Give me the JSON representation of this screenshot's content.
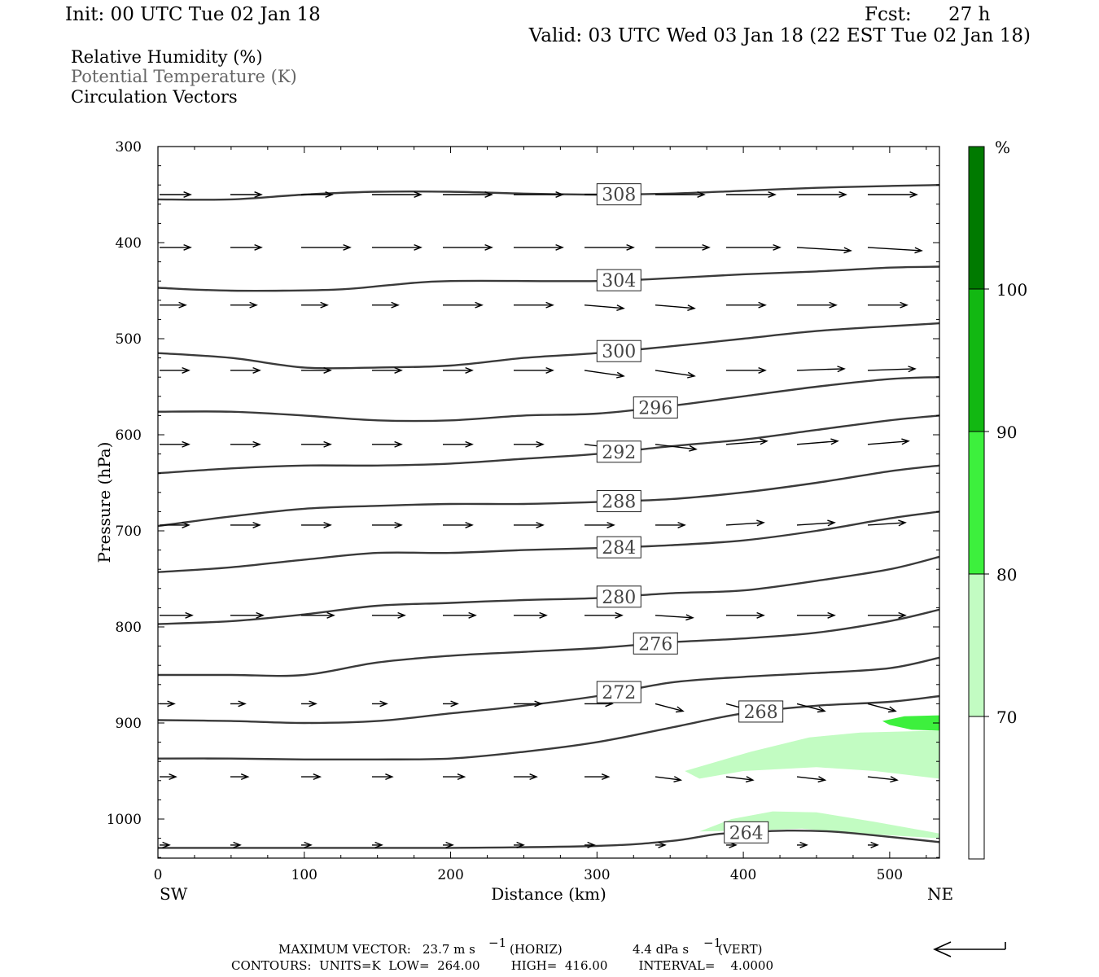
{
  "header": {
    "init": "Init: 00 UTC Tue 02 Jan 18",
    "fcst_label": "Fcst:",
    "fcst_value": "27 h",
    "valid": "Valid: 03 UTC Wed 03 Jan 18 (22 EST Tue 02 Jan 18)"
  },
  "legend": {
    "rh": "Relative Humidity (%)",
    "theta": "Potential Temperature (K)",
    "vectors": "Circulation Vectors"
  },
  "axes": {
    "xlabel": "Distance (km)",
    "ylabel": "Pressure (hPa)",
    "left_end": "SW",
    "right_end": "NE",
    "xticks": [
      "0",
      "100",
      "200",
      "300",
      "400",
      "500"
    ],
    "yticks": [
      "300",
      "400",
      "500",
      "600",
      "700",
      "800",
      "900",
      "1000"
    ]
  },
  "colorbar": {
    "unit": "%",
    "labels": [
      "100",
      "90",
      "80",
      "70"
    ],
    "colors": [
      "#007a00",
      "#12b812",
      "#3df03d",
      "#c2fcc2",
      "#ffffff"
    ]
  },
  "footer": {
    "max_vector_label": "MAXIMUM VECTOR:",
    "max_vector_horiz": "23.7 m s",
    "horiz_unit": "(HORIZ)",
    "max_vector_vert": "4.4 dPa s",
    "vert_unit": "(VERT)",
    "contours": "CONTOURS:  UNITS=K  LOW=  264.00        HIGH=  416.00        INTERVAL=    4.0000"
  },
  "chart_data": {
    "type": "contour",
    "title": "Relative Humidity (%) / Potential Temperature (K) / Circulation Vectors",
    "xlabel": "Distance (km)",
    "ylabel": "Pressure (hPa)",
    "xlim": [
      0,
      534
    ],
    "ylim": [
      1040,
      300
    ],
    "contours": [
      {
        "label": "308",
        "label_x": 315,
        "points": [
          [
            0,
            355
          ],
          [
            50,
            355
          ],
          [
            100,
            350
          ],
          [
            150,
            347
          ],
          [
            200,
            347
          ],
          [
            250,
            349
          ],
          [
            300,
            350
          ],
          [
            350,
            349
          ],
          [
            400,
            346
          ],
          [
            450,
            343
          ],
          [
            500,
            341
          ],
          [
            534,
            340
          ]
        ]
      },
      {
        "label": "304",
        "label_x": 315,
        "points": [
          [
            0,
            447
          ],
          [
            50,
            450
          ],
          [
            120,
            449
          ],
          [
            160,
            444
          ],
          [
            200,
            440
          ],
          [
            300,
            440
          ],
          [
            350,
            437
          ],
          [
            400,
            433
          ],
          [
            450,
            430
          ],
          [
            500,
            426
          ],
          [
            534,
            425
          ]
        ]
      },
      {
        "label": "300",
        "label_x": 315,
        "points": [
          [
            0,
            515
          ],
          [
            50,
            520
          ],
          [
            100,
            530
          ],
          [
            150,
            530
          ],
          [
            200,
            528
          ],
          [
            250,
            520
          ],
          [
            300,
            515
          ],
          [
            350,
            508
          ],
          [
            400,
            500
          ],
          [
            450,
            492
          ],
          [
            500,
            487
          ],
          [
            534,
            484
          ]
        ]
      },
      {
        "label": "296",
        "label_x": 340,
        "points": [
          [
            0,
            576
          ],
          [
            50,
            576
          ],
          [
            100,
            580
          ],
          [
            150,
            585
          ],
          [
            200,
            585
          ],
          [
            250,
            580
          ],
          [
            300,
            578
          ],
          [
            350,
            570
          ],
          [
            400,
            560
          ],
          [
            450,
            550
          ],
          [
            500,
            542
          ],
          [
            534,
            540
          ]
        ]
      },
      {
        "label": "292",
        "label_x": 315,
        "points": [
          [
            0,
            640
          ],
          [
            50,
            635
          ],
          [
            100,
            632
          ],
          [
            150,
            632
          ],
          [
            200,
            630
          ],
          [
            250,
            625
          ],
          [
            300,
            620
          ],
          [
            350,
            612
          ],
          [
            400,
            605
          ],
          [
            450,
            595
          ],
          [
            500,
            585
          ],
          [
            534,
            580
          ]
        ]
      },
      {
        "label": "288",
        "label_x": 315,
        "points": [
          [
            0,
            695
          ],
          [
            50,
            685
          ],
          [
            100,
            677
          ],
          [
            150,
            674
          ],
          [
            200,
            672
          ],
          [
            250,
            672
          ],
          [
            300,
            670
          ],
          [
            350,
            667
          ],
          [
            400,
            660
          ],
          [
            450,
            650
          ],
          [
            500,
            638
          ],
          [
            534,
            632
          ]
        ]
      },
      {
        "label": "284",
        "label_x": 315,
        "points": [
          [
            0,
            743
          ],
          [
            50,
            738
          ],
          [
            100,
            730
          ],
          [
            150,
            723
          ],
          [
            200,
            723
          ],
          [
            250,
            720
          ],
          [
            300,
            718
          ],
          [
            350,
            715
          ],
          [
            400,
            710
          ],
          [
            450,
            700
          ],
          [
            500,
            687
          ],
          [
            534,
            680
          ]
        ]
      },
      {
        "label": "280",
        "label_x": 315,
        "points": [
          [
            0,
            797
          ],
          [
            50,
            794
          ],
          [
            100,
            787
          ],
          [
            150,
            778
          ],
          [
            200,
            775
          ],
          [
            250,
            772
          ],
          [
            300,
            770
          ],
          [
            350,
            765
          ],
          [
            400,
            762
          ],
          [
            450,
            752
          ],
          [
            500,
            740
          ],
          [
            534,
            727
          ]
        ]
      },
      {
        "label": "276",
        "label_x": 340,
        "points": [
          [
            0,
            850
          ],
          [
            50,
            850
          ],
          [
            100,
            850
          ],
          [
            150,
            837
          ],
          [
            200,
            830
          ],
          [
            250,
            826
          ],
          [
            300,
            822
          ],
          [
            350,
            816
          ],
          [
            400,
            812
          ],
          [
            450,
            806
          ],
          [
            500,
            794
          ],
          [
            534,
            782
          ]
        ]
      },
      {
        "label": "272",
        "label_x": 315,
        "points": [
          [
            0,
            897
          ],
          [
            50,
            898
          ],
          [
            100,
            900
          ],
          [
            150,
            898
          ],
          [
            200,
            890
          ],
          [
            250,
            882
          ],
          [
            300,
            872
          ],
          [
            350,
            858
          ],
          [
            400,
            852
          ],
          [
            450,
            848
          ],
          [
            500,
            843
          ],
          [
            534,
            832
          ]
        ]
      },
      {
        "label": "268",
        "label_x": 412,
        "points": [
          [
            0,
            937
          ],
          [
            50,
            937
          ],
          [
            100,
            938
          ],
          [
            150,
            938
          ],
          [
            200,
            937
          ],
          [
            250,
            930
          ],
          [
            300,
            920
          ],
          [
            350,
            905
          ],
          [
            400,
            890
          ],
          [
            450,
            882
          ],
          [
            500,
            878
          ],
          [
            534,
            872
          ]
        ]
      },
      {
        "label": "264",
        "label_x": 402,
        "points": [
          [
            0,
            1030
          ],
          [
            100,
            1030
          ],
          [
            200,
            1030
          ],
          [
            300,
            1028
          ],
          [
            350,
            1023
          ],
          [
            380,
            1016
          ],
          [
            400,
            1014
          ],
          [
            430,
            1012
          ],
          [
            460,
            1013
          ],
          [
            490,
            1017
          ],
          [
            534,
            1024
          ]
        ]
      }
    ],
    "rh_shading": [
      {
        "level": "70-80",
        "color": "#c2fcc2",
        "regions": [
          [
            [
              360,
              950
            ],
            [
              405,
              930
            ],
            [
              445,
              915
            ],
            [
              480,
              910
            ],
            [
              534,
              908
            ],
            [
              534,
              958
            ],
            [
              490,
              950
            ],
            [
              450,
              946
            ],
            [
              400,
              950
            ],
            [
              370,
              958
            ]
          ],
          [
            [
              370,
              1013
            ],
            [
              392,
              1000
            ],
            [
              420,
              992
            ],
            [
              450,
              993
            ],
            [
              490,
              1003
            ],
            [
              534,
              1015
            ],
            [
              534,
              1020
            ],
            [
              490,
              1016
            ],
            [
              440,
              1010
            ],
            [
              400,
              1012
            ]
          ]
        ]
      },
      {
        "level": "80-90",
        "color": "#3df03d",
        "regions": [
          [
            [
              495,
              898
            ],
            [
              510,
              893
            ],
            [
              534,
              892
            ],
            [
              534,
              908
            ],
            [
              515,
              907
            ],
            [
              500,
              902
            ]
          ]
        ]
      }
    ],
    "vector_rows_hpa": [
      350,
      405,
      465,
      533,
      610,
      694,
      788,
      880,
      956,
      1027
    ],
    "max_vector_horiz_ms": 23.7,
    "max_vector_vert_dpas": 4.4,
    "contour_low": 264.0,
    "contour_high": 416.0,
    "contour_interval": 4.0
  }
}
